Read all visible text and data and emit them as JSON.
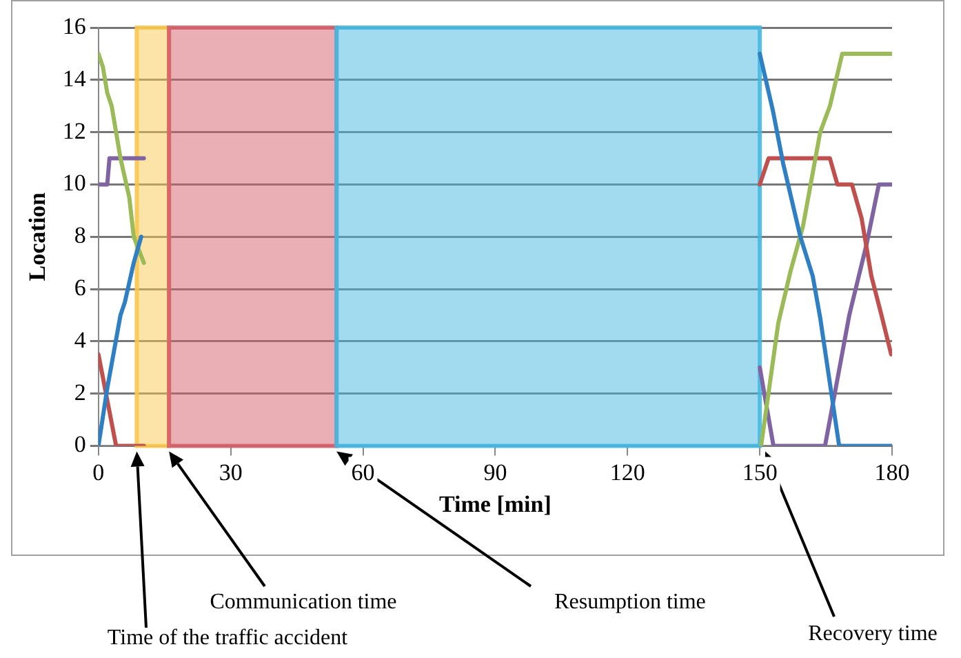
{
  "chart_data": {
    "type": "line",
    "xlabel": "Time [min]",
    "ylabel": "Location",
    "xlim": [
      0,
      180
    ],
    "xticks": [
      0,
      30,
      60,
      90,
      120,
      150,
      180
    ],
    "ylim": [
      0,
      16
    ],
    "yticks": [
      0,
      2,
      4,
      6,
      8,
      10,
      12,
      14,
      16
    ],
    "grid": "y",
    "legend": false,
    "marker": "none",
    "line_style": "solid",
    "series": [
      {
        "color": "#2f7fc4",
        "x": [
          0,
          2,
          5,
          6,
          8,
          9.7,
          12,
          150,
          153,
          155.3,
          159.2,
          162,
          163.7,
          168,
          180
        ],
        "values": [
          0,
          2.2,
          5,
          5.5,
          7,
          8,
          null,
          15,
          12.8,
          10.8,
          8,
          6.5,
          4.9,
          0,
          0
        ]
      },
      {
        "color": "#9bbb59",
        "x": [
          0,
          1,
          2,
          3,
          5,
          7,
          8,
          10.3,
          12,
          150.3,
          154.2,
          157,
          159.8,
          163.7,
          165.9,
          168.7,
          180
        ],
        "values": [
          15,
          14.5,
          13.5,
          13,
          11,
          9.5,
          8,
          7,
          null,
          0,
          4.7,
          6.7,
          8.4,
          12,
          13,
          15,
          15
        ]
      },
      {
        "color": "#c0504d",
        "x": [
          0,
          4,
          10.3,
          12,
          150,
          152,
          165.9,
          167.6,
          170.9,
          173.1,
          175.3,
          177.6,
          179.8
        ],
        "values": [
          3.5,
          0,
          0,
          null,
          10,
          11,
          11,
          10,
          10,
          8.7,
          6.5,
          5,
          3.5
        ]
      },
      {
        "color": "#8064a2",
        "x": [
          0,
          2,
          2.5,
          10.3,
          12,
          150,
          153.1,
          164.8,
          167,
          170.3,
          174.2,
          177,
          180
        ],
        "values": [
          10,
          10,
          11,
          11,
          null,
          3,
          0,
          0,
          2,
          5,
          7.7,
          10,
          10
        ]
      }
    ],
    "bands": [
      {
        "axis": "x",
        "from": 8.7,
        "to": 16,
        "color": "#f9c74f"
      },
      {
        "axis": "x",
        "from": 16,
        "to": 54,
        "color": "#d4606b"
      },
      {
        "axis": "x",
        "from": 54,
        "to": 150,
        "color": "#45b8e0"
      }
    ],
    "annotations": [
      "Time of the traffic accident",
      "Communication time",
      "Resumption time",
      "Recovery time"
    ]
  }
}
